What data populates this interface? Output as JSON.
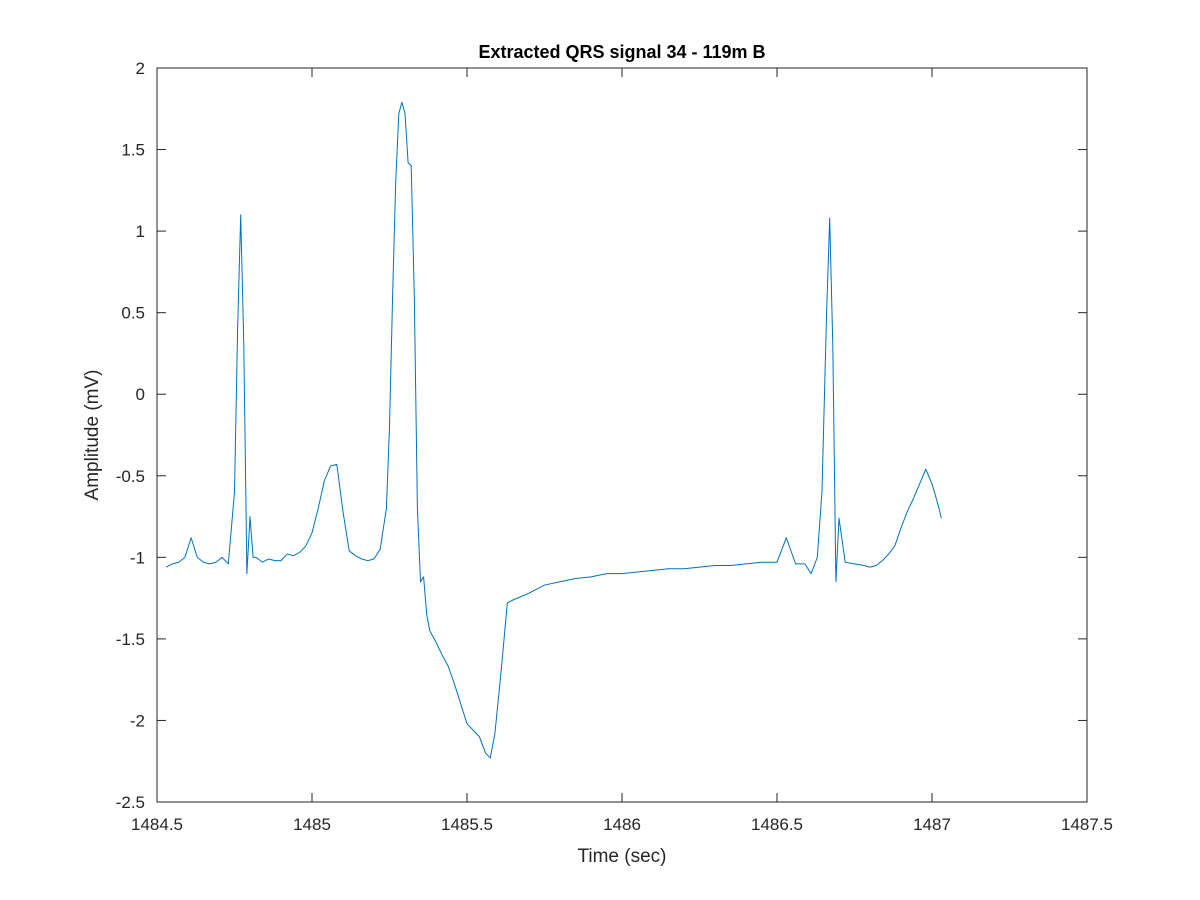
{
  "chart_data": {
    "type": "line",
    "title": "Extracted QRS signal 34 - 119m B",
    "xlabel": "Time (sec)",
    "ylabel": "Amplitude (mV)",
    "xlim": [
      1484.5,
      1487.5
    ],
    "ylim": [
      -2.5,
      2
    ],
    "xticks": [
      1484.5,
      1485,
      1485.5,
      1486,
      1486.5,
      1487,
      1487.5
    ],
    "xtick_labels": [
      "1484.5",
      "1485",
      "1485.5",
      "1486",
      "1486.5",
      "1487",
      "1487.5"
    ],
    "yticks": [
      -2.5,
      -2,
      -1.5,
      -1,
      -0.5,
      0,
      0.5,
      1,
      1.5,
      2
    ],
    "ytick_labels": [
      "-2.5",
      "-2",
      "-1.5",
      "-1",
      "-0.5",
      "0",
      "0.5",
      "1",
      "1.5",
      "2"
    ],
    "grid": false,
    "series": [
      {
        "color": "#0072bd",
        "x": [
          1484.53,
          1484.55,
          1484.57,
          1484.59,
          1484.61,
          1484.63,
          1484.65,
          1484.67,
          1484.69,
          1484.71,
          1484.73,
          1484.75,
          1484.76,
          1484.77,
          1484.78,
          1484.79,
          1484.8,
          1484.81,
          1484.82,
          1484.84,
          1484.86,
          1484.88,
          1484.9,
          1484.92,
          1484.94,
          1484.96,
          1484.98,
          1485.0,
          1485.02,
          1485.04,
          1485.06,
          1485.08,
          1485.1,
          1485.12,
          1485.14,
          1485.16,
          1485.18,
          1485.2,
          1485.22,
          1485.24,
          1485.25,
          1485.26,
          1485.27,
          1485.28,
          1485.29,
          1485.3,
          1485.31,
          1485.32,
          1485.33,
          1485.34,
          1485.35,
          1485.36,
          1485.37,
          1485.38,
          1485.4,
          1485.42,
          1485.44,
          1485.46,
          1485.48,
          1485.5,
          1485.52,
          1485.54,
          1485.56,
          1485.575,
          1485.59,
          1485.61,
          1485.63,
          1485.65,
          1485.7,
          1485.75,
          1485.8,
          1485.85,
          1485.9,
          1485.95,
          1486.0,
          1486.05,
          1486.1,
          1486.15,
          1486.2,
          1486.25,
          1486.3,
          1486.35,
          1486.4,
          1486.45,
          1486.5,
          1486.53,
          1486.56,
          1486.59,
          1486.61,
          1486.63,
          1486.645,
          1486.66,
          1486.67,
          1486.68,
          1486.69,
          1486.7,
          1486.72,
          1486.75,
          1486.78,
          1486.8,
          1486.82,
          1486.84,
          1486.86,
          1486.88,
          1486.9,
          1486.92,
          1486.94,
          1486.96,
          1486.98,
          1487.0,
          1487.02,
          1487.03
        ],
        "y": [
          -1.06,
          -1.04,
          -1.03,
          -1.0,
          -0.88,
          -1.0,
          -1.03,
          -1.04,
          -1.03,
          -1.0,
          -1.04,
          -0.6,
          0.4,
          1.1,
          0.3,
          -1.1,
          -0.75,
          -1.0,
          -1.0,
          -1.03,
          -1.01,
          -1.02,
          -1.02,
          -0.98,
          -0.99,
          -0.97,
          -0.93,
          -0.85,
          -0.7,
          -0.53,
          -0.44,
          -0.43,
          -0.72,
          -0.96,
          -0.99,
          -1.01,
          -1.02,
          -1.01,
          -0.95,
          -0.7,
          -0.2,
          0.6,
          1.3,
          1.72,
          1.79,
          1.72,
          1.42,
          1.4,
          0.6,
          -0.7,
          -1.15,
          -1.12,
          -1.35,
          -1.45,
          -1.52,
          -1.6,
          -1.67,
          -1.78,
          -1.9,
          -2.02,
          -2.06,
          -2.1,
          -2.2,
          -2.23,
          -2.08,
          -1.7,
          -1.28,
          -1.26,
          -1.22,
          -1.17,
          -1.15,
          -1.13,
          -1.12,
          -1.1,
          -1.1,
          -1.09,
          -1.08,
          -1.07,
          -1.07,
          -1.06,
          -1.05,
          -1.05,
          -1.04,
          -1.03,
          -1.03,
          -0.88,
          -1.04,
          -1.04,
          -1.1,
          -1.0,
          -0.6,
          0.5,
          1.08,
          0.3,
          -1.15,
          -0.76,
          -1.03,
          -1.04,
          -1.05,
          -1.06,
          -1.05,
          -1.02,
          -0.98,
          -0.93,
          -0.82,
          -0.72,
          -0.64,
          -0.55,
          -0.46,
          -0.55,
          -0.68,
          -0.76
        ]
      }
    ]
  }
}
